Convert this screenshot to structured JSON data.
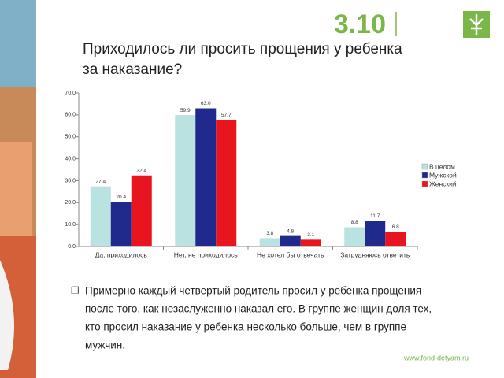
{
  "slide_number": "3.10",
  "chart_data": {
    "type": "bar",
    "title": [
      "Приходилось ли просить прощения у ребенка",
      "за наказание?"
    ],
    "categories": [
      "Да, приходилось",
      "Нет, не приходилось",
      "Не хотел бы отвечать",
      "Затрудняюсь ответить"
    ],
    "series": [
      {
        "name": "В целом",
        "color": "#b9e2e0",
        "values": [
          27.4,
          59.9,
          3.8,
          8.8
        ],
        "value_labels": [
          "27.4",
          "59.9",
          "3.8",
          "8.8"
        ]
      },
      {
        "name": "Мужской",
        "color": "#1f2a8c",
        "values": [
          20.4,
          63.0,
          4.8,
          11.7
        ],
        "value_labels": [
          "20.4",
          "63.0",
          "4.8",
          "11.7"
        ]
      },
      {
        "name": "Женский",
        "color": "#e8141e",
        "values": [
          32.4,
          57.7,
          3.1,
          6.8
        ],
        "value_labels": [
          "32.4",
          "57.7",
          "3.1",
          "6.8"
        ]
      }
    ],
    "ylim": [
      0,
      70
    ],
    "yticks": [
      {
        "value": 0,
        "label": "0.0"
      },
      {
        "value": 10,
        "label": "10.0"
      },
      {
        "value": 20,
        "label": "20.0"
      },
      {
        "value": 30,
        "label": "30.0"
      },
      {
        "value": 40,
        "label": "40.0"
      },
      {
        "value": 50,
        "label": "50.0"
      },
      {
        "value": 60,
        "label": "60.0"
      },
      {
        "value": 70,
        "label": "70.0"
      }
    ],
    "legend": "right"
  },
  "note": [
    "Примерно каждый четвертый родитель просил у ребенка прощения",
    "после того, как незаслуженно наказал его. В группе женщин доля тех,",
    "кто просил наказание у ребенка несколько больше, чем в группе",
    "мужчин."
  ],
  "url": "www.fond-detyam.ru"
}
